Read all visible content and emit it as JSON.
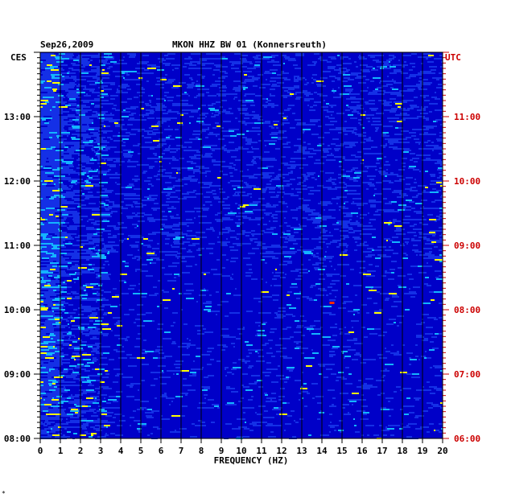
{
  "chart_data": {
    "type": "heatmap",
    "title": "MKON HHZ BW 01 (Konnersreuth)",
    "date": "Sep26,2009",
    "xlabel": "FREQUENCY (HZ)",
    "xlim": [
      0,
      20
    ],
    "x_ticks": [
      "0",
      "1",
      "2",
      "3",
      "4",
      "5",
      "6",
      "7",
      "8",
      "9",
      "10",
      "11",
      "12",
      "13",
      "14",
      "15",
      "16",
      "17",
      "18",
      "19",
      "20"
    ],
    "left_axis": {
      "label": "CES",
      "tick_labels": [
        "08:00",
        "09:00",
        "10:00",
        "11:00",
        "12:00",
        "13:00"
      ],
      "tick_hours": [
        8,
        9,
        10,
        11,
        12,
        13
      ],
      "range_hours": [
        8,
        14
      ]
    },
    "right_axis": {
      "label": "UTC",
      "tick_labels": [
        "06:00",
        "07:00",
        "08:00",
        "09:00",
        "10:00",
        "11:00"
      ],
      "tick_hours": [
        6,
        7,
        8,
        9,
        10,
        11
      ],
      "range_hours": [
        6,
        12
      ]
    },
    "colors": {
      "background": "#0000c8",
      "low": "#1430e6",
      "mid": "#14b4ff",
      "high": "#ffff00",
      "peak": "#ff2800",
      "right_axis": "#cc0000"
    },
    "notable_events": [
      {
        "time_ces": "10:00",
        "freq_hz": 14.5,
        "level": "peak"
      }
    ],
    "footer_mark": "*"
  }
}
